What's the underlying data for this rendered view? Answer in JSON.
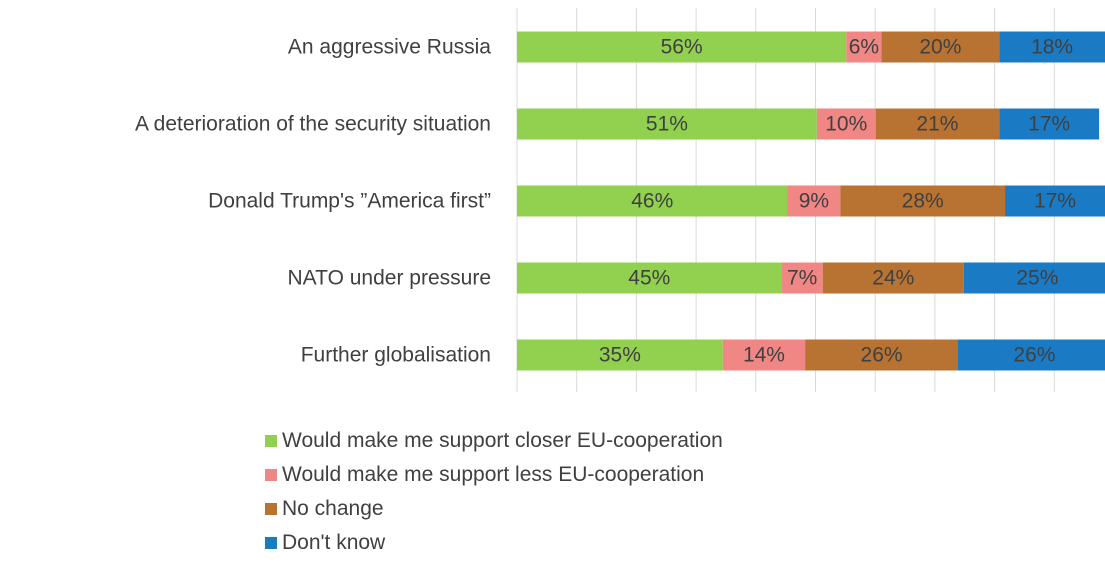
{
  "chart_data": {
    "type": "bar",
    "orientation": "horizontal",
    "stacked": true,
    "percent_stacked": true,
    "categories": [
      "An aggressive Russia",
      "A deterioration of the security situation",
      "Donald Trump's ”America first”",
      "NATO under pressure",
      "Further globalisation"
    ],
    "series": [
      {
        "name": "Would make me support closer EU-cooperation",
        "color": "#92d050",
        "values": [
          56,
          51,
          46,
          45,
          35
        ],
        "labels": [
          "56%",
          "51%",
          "46%",
          "45%",
          "35%"
        ]
      },
      {
        "name": "Would make me support less EU-cooperation",
        "color": "#f08784",
        "values": [
          6,
          10,
          9,
          7,
          14
        ],
        "labels": [
          "6%",
          "10%",
          "9%",
          "7%",
          "14%"
        ]
      },
      {
        "name": "No change",
        "color": "#b87333",
        "values": [
          20,
          21,
          28,
          24,
          26
        ],
        "labels": [
          "20%",
          "21%",
          "28%",
          "24%",
          "26%"
        ]
      },
      {
        "name": "Don't know",
        "color": "#1a7bc4",
        "values": [
          18,
          17,
          17,
          25,
          26
        ],
        "labels": [
          "18%",
          "17%",
          "17%",
          "25%",
          "26%"
        ]
      }
    ],
    "xlim": [
      0,
      100
    ],
    "grid": true,
    "legend_position": "bottom",
    "title": "",
    "xlabel": "",
    "ylabel": ""
  }
}
